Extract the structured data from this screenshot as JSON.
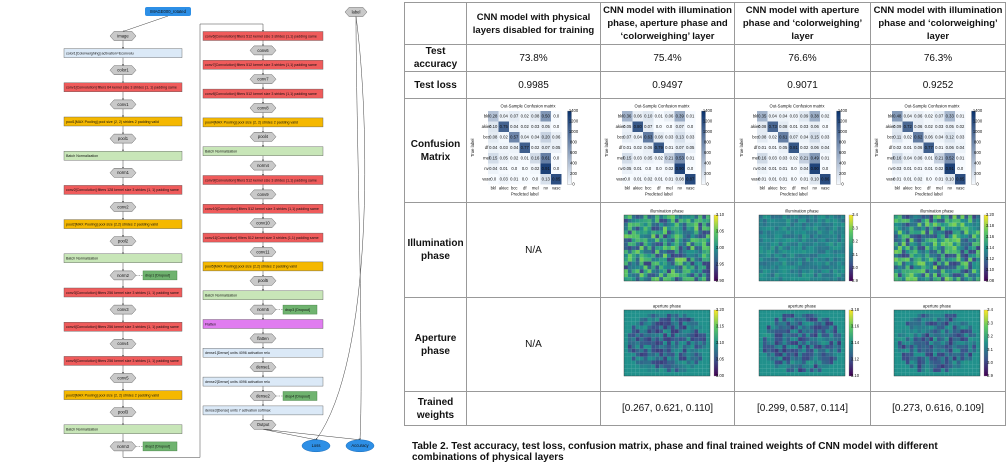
{
  "diagram": {
    "input_node": "IMAGE000_rotated",
    "label_node": "label",
    "left_column": [
      {
        "kind": "hex",
        "text": "image"
      },
      {
        "kind": "rect",
        "color": "#dbe9f7",
        "text": "color1[Colorweighing] activation=Econvolu"
      },
      {
        "kind": "hex",
        "text": "color1"
      },
      {
        "kind": "rect",
        "color": "#ef5b5b",
        "text": "conv1[Convolution] filters 64 kernel size 3 strides (1, 1) padding same"
      },
      {
        "kind": "hex",
        "text": "conv1"
      },
      {
        "kind": "rect",
        "color": "#f5b800",
        "text": "pool1[MAX Pooling] pool size (2, 2) strides 2 padding valid"
      },
      {
        "kind": "hex",
        "text": "pool1"
      },
      {
        "kind": "rect",
        "color": "#c8e6b8",
        "text": "Batch Normalization"
      },
      {
        "kind": "hex",
        "text": "norm1"
      },
      {
        "kind": "rect",
        "color": "#ef5b5b",
        "text": "conv2[Convolution] filters 128 kernel size 3 strides (1, 1) padding same"
      },
      {
        "kind": "hex",
        "text": "conv2"
      },
      {
        "kind": "rect",
        "color": "#f5b800",
        "text": "pool2[MAX Pooling] pool size (2,2) strides 2 padding valid"
      },
      {
        "kind": "hex",
        "text": "pool2"
      },
      {
        "kind": "rect",
        "color": "#c8e6b8",
        "text": "Batch Normalization"
      },
      {
        "kind": "hex",
        "text": "norm2"
      },
      {
        "kind": "rect",
        "color": "#ef5b5b",
        "text": "conv3[Convolution] filters 256 kernel size 3 strides (1, 1) padding same"
      },
      {
        "kind": "hex",
        "text": "conv3"
      },
      {
        "kind": "rect",
        "color": "#ef5b5b",
        "text": "conv4[Convolution] filters 256 kernel size 3 strides (1, 1) padding same"
      },
      {
        "kind": "hex",
        "text": "conv4"
      },
      {
        "kind": "rect",
        "color": "#ef5b5b",
        "text": "conv5[Convolution] filters 256 kernel size 3 strides (1, 1) padding same"
      },
      {
        "kind": "hex",
        "text": "conv5"
      },
      {
        "kind": "rect",
        "color": "#f5b800",
        "text": "pool3[MAX Pooling] pool size (2, 2) strides 2 padding valid"
      },
      {
        "kind": "hex",
        "text": "pool3"
      },
      {
        "kind": "rect",
        "color": "#c8e6b8",
        "text": "Batch Normalization"
      },
      {
        "kind": "hex",
        "text": "norm3"
      }
    ],
    "left_drops": [
      {
        "after": "norm2",
        "text": "drop1 [Dropout]"
      },
      {
        "after": "norm3",
        "text": "drop2 [Dropout]"
      }
    ],
    "right_column": [
      {
        "kind": "rect",
        "color": "#ef5b5b",
        "text": "conv6[Convolution] filters 512 kernel size 3 strides (1,1) padding same"
      },
      {
        "kind": "hex",
        "text": "conv6"
      },
      {
        "kind": "rect",
        "color": "#ef5b5b",
        "text": "conv7[Convolution] filters 512 kernel size 3 strides (1,1) padding same"
      },
      {
        "kind": "hex",
        "text": "conv7"
      },
      {
        "kind": "rect",
        "color": "#ef5b5b",
        "text": "conv8[Convolution] filters 512 kernel size 3 strides (1,1) padding same"
      },
      {
        "kind": "hex",
        "text": "conv8"
      },
      {
        "kind": "rect",
        "color": "#f5b800",
        "text": "pool4[MAX Pooling] pool size (2, 2) strides 2 padding valid"
      },
      {
        "kind": "hex",
        "text": "pool4"
      },
      {
        "kind": "rect",
        "color": "#c8e6b8",
        "text": "Batch Normalization"
      },
      {
        "kind": "hex",
        "text": "norm4"
      },
      {
        "kind": "rect",
        "color": "#ef5b5b",
        "text": "conv9[Convolution] filters 512 kernel size 3 strides (1,1) padding same"
      },
      {
        "kind": "hex",
        "text": "conv9"
      },
      {
        "kind": "rect",
        "color": "#ef5b5b",
        "text": "conv10[Convolution] filters 512 kernel size 3 strides (1,1) padding same"
      },
      {
        "kind": "hex",
        "text": "conv10"
      },
      {
        "kind": "rect",
        "color": "#ef5b5b",
        "text": "conv11[Convolution] filters 512 kernel size 3 strides (1,1) padding same"
      },
      {
        "kind": "hex",
        "text": "conv11"
      },
      {
        "kind": "rect",
        "color": "#f5b800",
        "text": "pool5[MAX Pooling] pool size (2,2) strides 2 padding valid"
      },
      {
        "kind": "hex",
        "text": "pool5"
      },
      {
        "kind": "rect",
        "color": "#c8e6b8",
        "text": "Batch Normalization"
      },
      {
        "kind": "hex",
        "text": "norm5"
      },
      {
        "kind": "rect",
        "color": "#e07cf0",
        "text": "Flatten"
      },
      {
        "kind": "hex",
        "text": "flatten"
      },
      {
        "kind": "rect",
        "color": "#dbe9f7",
        "text": "dense1[Dense] units 4096 activation relu"
      },
      {
        "kind": "hex",
        "text": "dense1"
      },
      {
        "kind": "rect",
        "color": "#dbe9f7",
        "text": "dense2[Dense] units 4096 activation relu"
      },
      {
        "kind": "hex",
        "text": "dense2"
      },
      {
        "kind": "rect",
        "color": "#dbe9f7",
        "text": "dense3[Dense] units 7 activation softmax"
      },
      {
        "kind": "hex",
        "text": "Output"
      }
    ],
    "right_drops": [
      {
        "after": "norm5",
        "text": "drop3 [Dropout]"
      },
      {
        "after": "dense2",
        "text": "drop4 [Dropout]"
      }
    ],
    "outputs": [
      "Loss",
      "Accuracy"
    ]
  },
  "table": {
    "columns": [
      "CNN model with physical layers disabled for training",
      "CNN model with illumination phase, aperture phase and ‘colorweighing’ layer",
      "CNN model with aperture phase and ‘colorweighing’ layer",
      "CNN model with illumination phase and ‘colorweighing’ layer"
    ],
    "rows": {
      "accuracy": {
        "label": "Test accuracy",
        "values": [
          "73.8%",
          "75.4%",
          "76.6%",
          "76.3%"
        ]
      },
      "loss": {
        "label": "Test loss",
        "values": [
          "0.9985",
          "0.9497",
          "0.9071",
          "0.9252"
        ]
      },
      "confusion": {
        "label": "Confusion Matrix"
      },
      "illumination": {
        "label": "Illumination phase",
        "na": "N/A"
      },
      "aperture": {
        "label": "Aperture phase",
        "na": "N/A"
      },
      "weights": {
        "label": "Trained weights",
        "values": [
          "",
          "[0.267, 0.621, 0.110]",
          "[0.299, 0.587, 0.114]",
          "[0.273, 0.616, 0.109]"
        ]
      }
    },
    "confusion": {
      "title": "Out-Sample Confusion matrix",
      "xlabel": "Predicted label",
      "ylabel": "True label",
      "class_labels": [
        "bkl",
        "akiec",
        "bcc",
        "df",
        "mel",
        "nv",
        "vasc"
      ],
      "colorbar_ticks": [
        "1400",
        "1200",
        "1000",
        "800",
        "600",
        "400",
        "200",
        "0"
      ],
      "matrices": [
        [
          [
            0.28,
            0.04,
            0.07,
            0.02,
            0.08,
            0.5,
            0.0
          ],
          [
            0.1,
            0.75,
            0.04,
            0.02,
            0.03,
            0.05,
            0.0
          ],
          [
            0.08,
            0.02,
            0.57,
            0.04,
            0.04,
            0.2,
            0.06
          ],
          [
            0.04,
            0.03,
            0.04,
            0.77,
            0.02,
            0.07,
            0.05
          ],
          [
            0.15,
            0.05,
            0.02,
            0.01,
            0.16,
            0.61,
            0.0
          ],
          [
            0.04,
            0.01,
            0.0,
            0.0,
            0.02,
            0.91,
            0.0
          ],
          [
            0.0,
            0.03,
            0.01,
            0.0,
            0.0,
            0.13,
            0.85
          ]
        ],
        [
          [
            0.36,
            0.06,
            0.1,
            0.01,
            0.06,
            0.39,
            0.01
          ],
          [
            0.05,
            0.8,
            0.07,
            0.0,
            0.0,
            0.07,
            0.0
          ],
          [
            0.07,
            0.04,
            0.63,
            0.08,
            0.03,
            0.13,
            0.03
          ],
          [
            0.01,
            0.02,
            0.06,
            0.79,
            0.01,
            0.07,
            0.05
          ],
          [
            0.15,
            0.03,
            0.05,
            0.02,
            0.21,
            0.53,
            0.01
          ],
          [
            0.05,
            0.01,
            0.0,
            0.0,
            0.02,
            0.9,
            0.0
          ],
          [
            0.0,
            0.01,
            0.02,
            0.01,
            0.01,
            0.08,
            0.87
          ]
        ],
        [
          [
            0.35,
            0.04,
            0.04,
            0.03,
            0.09,
            0.38,
            0.02
          ],
          [
            0.08,
            0.73,
            0.08,
            0.01,
            0.03,
            0.06,
            0.0
          ],
          [
            0.08,
            0.02,
            0.61,
            0.07,
            0.04,
            0.15,
            0.03
          ],
          [
            0.01,
            0.01,
            0.05,
            0.81,
            0.02,
            0.06,
            0.04
          ],
          [
            0.16,
            0.03,
            0.03,
            0.02,
            0.21,
            0.49,
            0.01
          ],
          [
            0.04,
            0.01,
            0.01,
            0.0,
            0.04,
            0.9,
            0.0
          ],
          [
            0.01,
            0.01,
            0.01,
            0.0,
            0.01,
            0.1,
            0.86
          ]
        ],
        [
          [
            0.48,
            0.04,
            0.06,
            0.02,
            0.07,
            0.33,
            0.01
          ],
          [
            0.09,
            0.72,
            0.06,
            0.02,
            0.03,
            0.05,
            0.02
          ],
          [
            0.11,
            0.02,
            0.62,
            0.06,
            0.04,
            0.12,
            0.03
          ],
          [
            0.02,
            0.01,
            0.06,
            0.77,
            0.01,
            0.06,
            0.04
          ],
          [
            0.16,
            0.04,
            0.06,
            0.01,
            0.21,
            0.52,
            0.01
          ],
          [
            0.03,
            0.01,
            0.01,
            0.01,
            0.02,
            0.91,
            0.0
          ],
          [
            0.01,
            0.01,
            0.02,
            0.0,
            0.01,
            0.1,
            0.85
          ]
        ]
      ]
    },
    "illumination": {
      "title": "illumination phase",
      "panels": [
        {
          "ticks": [
            "3.10",
            "3.05",
            "3.00",
            "2.95",
            "2.90"
          ]
        },
        {
          "ticks": [
            "3.4",
            "3.3",
            "3.2",
            "3.1",
            "3.0",
            "2.9"
          ]
        },
        {
          "ticks": [
            "3.20",
            "3.18",
            "3.16",
            "3.14",
            "3.12",
            "3.10",
            "3.08"
          ]
        }
      ]
    },
    "aperture": {
      "title": "aperture phase",
      "panels": [
        {
          "ticks": [
            "3.20",
            "3.15",
            "3.10",
            "3.05",
            "3.00"
          ]
        },
        {
          "ticks": [
            "3.18",
            "3.16",
            "3.14",
            "3.12",
            "3.10"
          ]
        },
        {
          "ticks": [
            "3.4",
            "3.3",
            "3.2",
            "3.1",
            "3.0",
            "2.9"
          ]
        }
      ]
    },
    "caption": "Table 2. Test accuracy, test loss, confusion matrix, phase and final trained weights of CNN model with different combinations of physical layers"
  },
  "colors": {
    "input_blue": "#2d8fe6",
    "output_blue": "#2d8fe6",
    "hex_gray": "#c9c9c9",
    "dropout_green": "#6fb36f",
    "heat_dark": "#08306b",
    "heat_light": "#f7fbff"
  }
}
